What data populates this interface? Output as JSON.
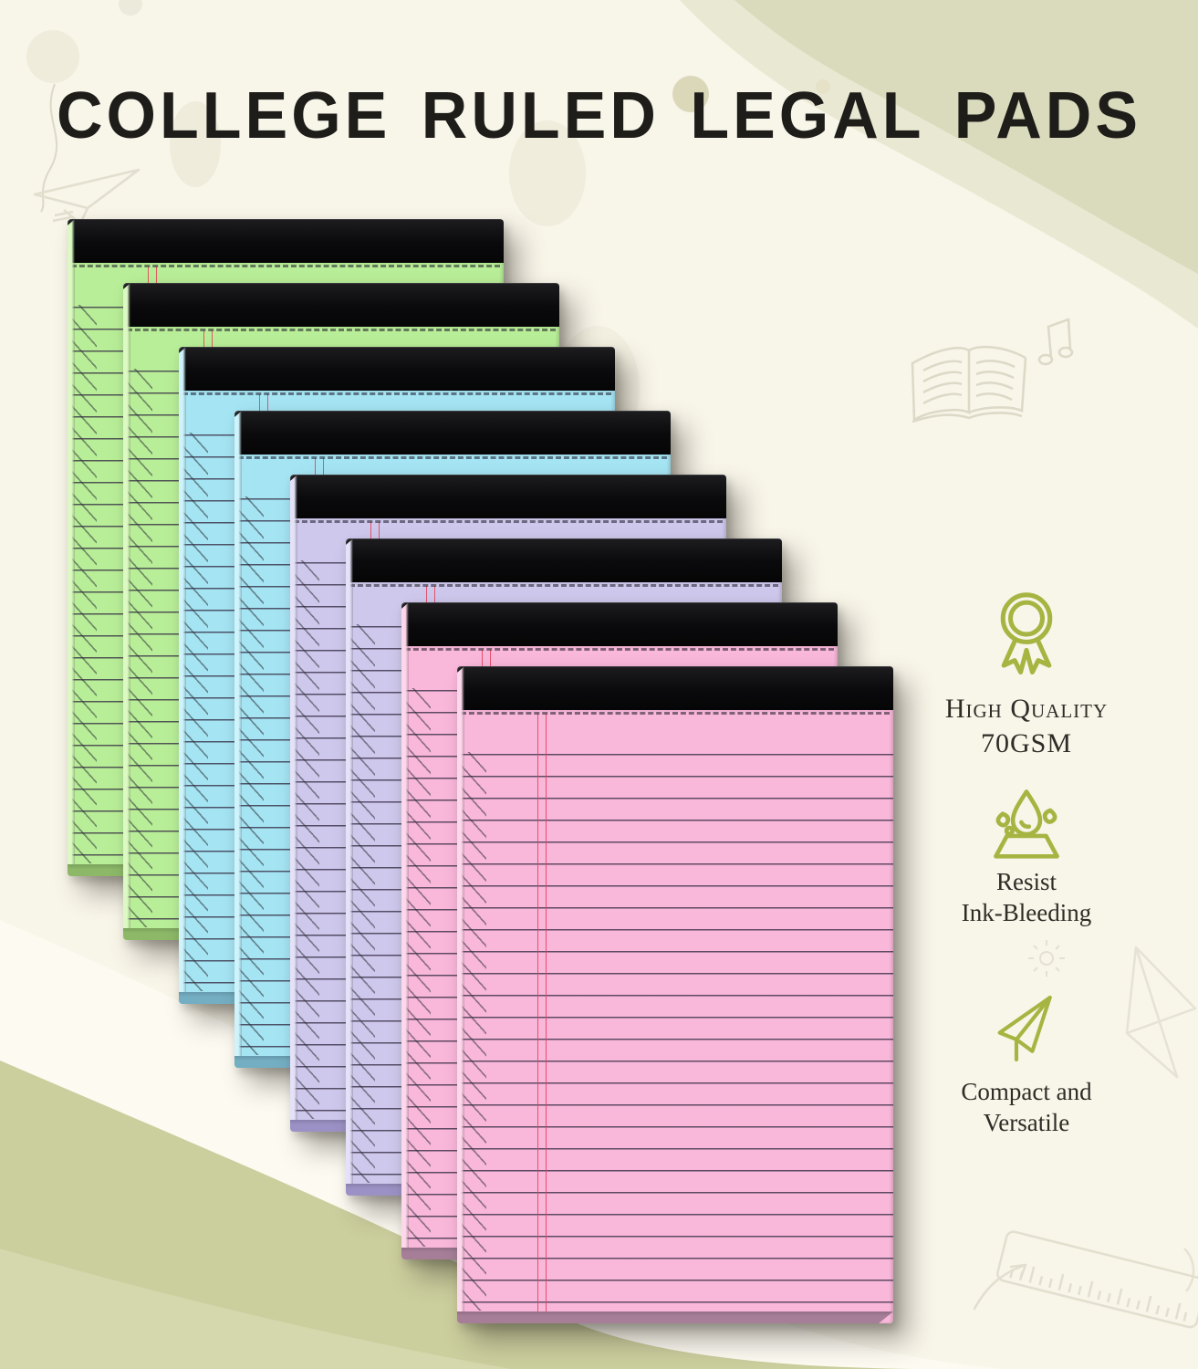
{
  "title": "COLLEGE RULED LEGAL PADS",
  "features": [
    {
      "icon": "medal-icon",
      "line1": "High Quality",
      "line2": "70GSM"
    },
    {
      "icon": "water-drop-icon",
      "line1": "Resist",
      "line2": "Ink-Bleeding"
    },
    {
      "icon": "paper-plane-icon",
      "line1": "Compact and",
      "line2": "Versatile"
    }
  ],
  "pads": [
    {
      "name": "legal-pad-green-1",
      "color_name": "green",
      "paper": "#b9ee98",
      "edge": "#dcf9c4",
      "shade": "#8cb868"
    },
    {
      "name": "legal-pad-green-2",
      "color_name": "green",
      "paper": "#b9ee98",
      "edge": "#dcf9c4",
      "shade": "#8cb868"
    },
    {
      "name": "legal-pad-blue-1",
      "color_name": "blue",
      "paper": "#a5e4f3",
      "edge": "#cff3fb",
      "shade": "#74aec2"
    },
    {
      "name": "legal-pad-blue-2",
      "color_name": "blue",
      "paper": "#a5e4f3",
      "edge": "#cff3fb",
      "shade": "#74aec2"
    },
    {
      "name": "legal-pad-purple-1",
      "color_name": "purple",
      "paper": "#cec8ec",
      "edge": "#e5e1f8",
      "shade": "#9c91c4"
    },
    {
      "name": "legal-pad-purple-2",
      "color_name": "purple",
      "paper": "#cec8ec",
      "edge": "#e5e1f8",
      "shade": "#9c91c4"
    },
    {
      "name": "legal-pad-pink-1",
      "color_name": "pink",
      "paper": "#f9b7da",
      "edge": "#fdd8eb",
      "shade": "#a67e98"
    },
    {
      "name": "legal-pad-pink-2",
      "color_name": "pink",
      "paper": "#f9b7da",
      "edge": "#fdd8eb",
      "shade": "#a67e98"
    }
  ],
  "colors": {
    "background": "#f8f5e9",
    "wave_top_dark": "#dadbbd",
    "wave_top_light": "#e9e8d2",
    "wave_bottom_sage": "#cbce9d",
    "wave_bottom_corner": "#d5d7ad",
    "band_white": "#fcfaf1",
    "binding": "#0a0a0c",
    "rule_line": "rgba(52,44,66,0.78)",
    "margin_line": "#e63e58",
    "accent_icon": "#a6b542",
    "title_text": "#1e1d1a",
    "feature_text": "#2f2c27"
  }
}
